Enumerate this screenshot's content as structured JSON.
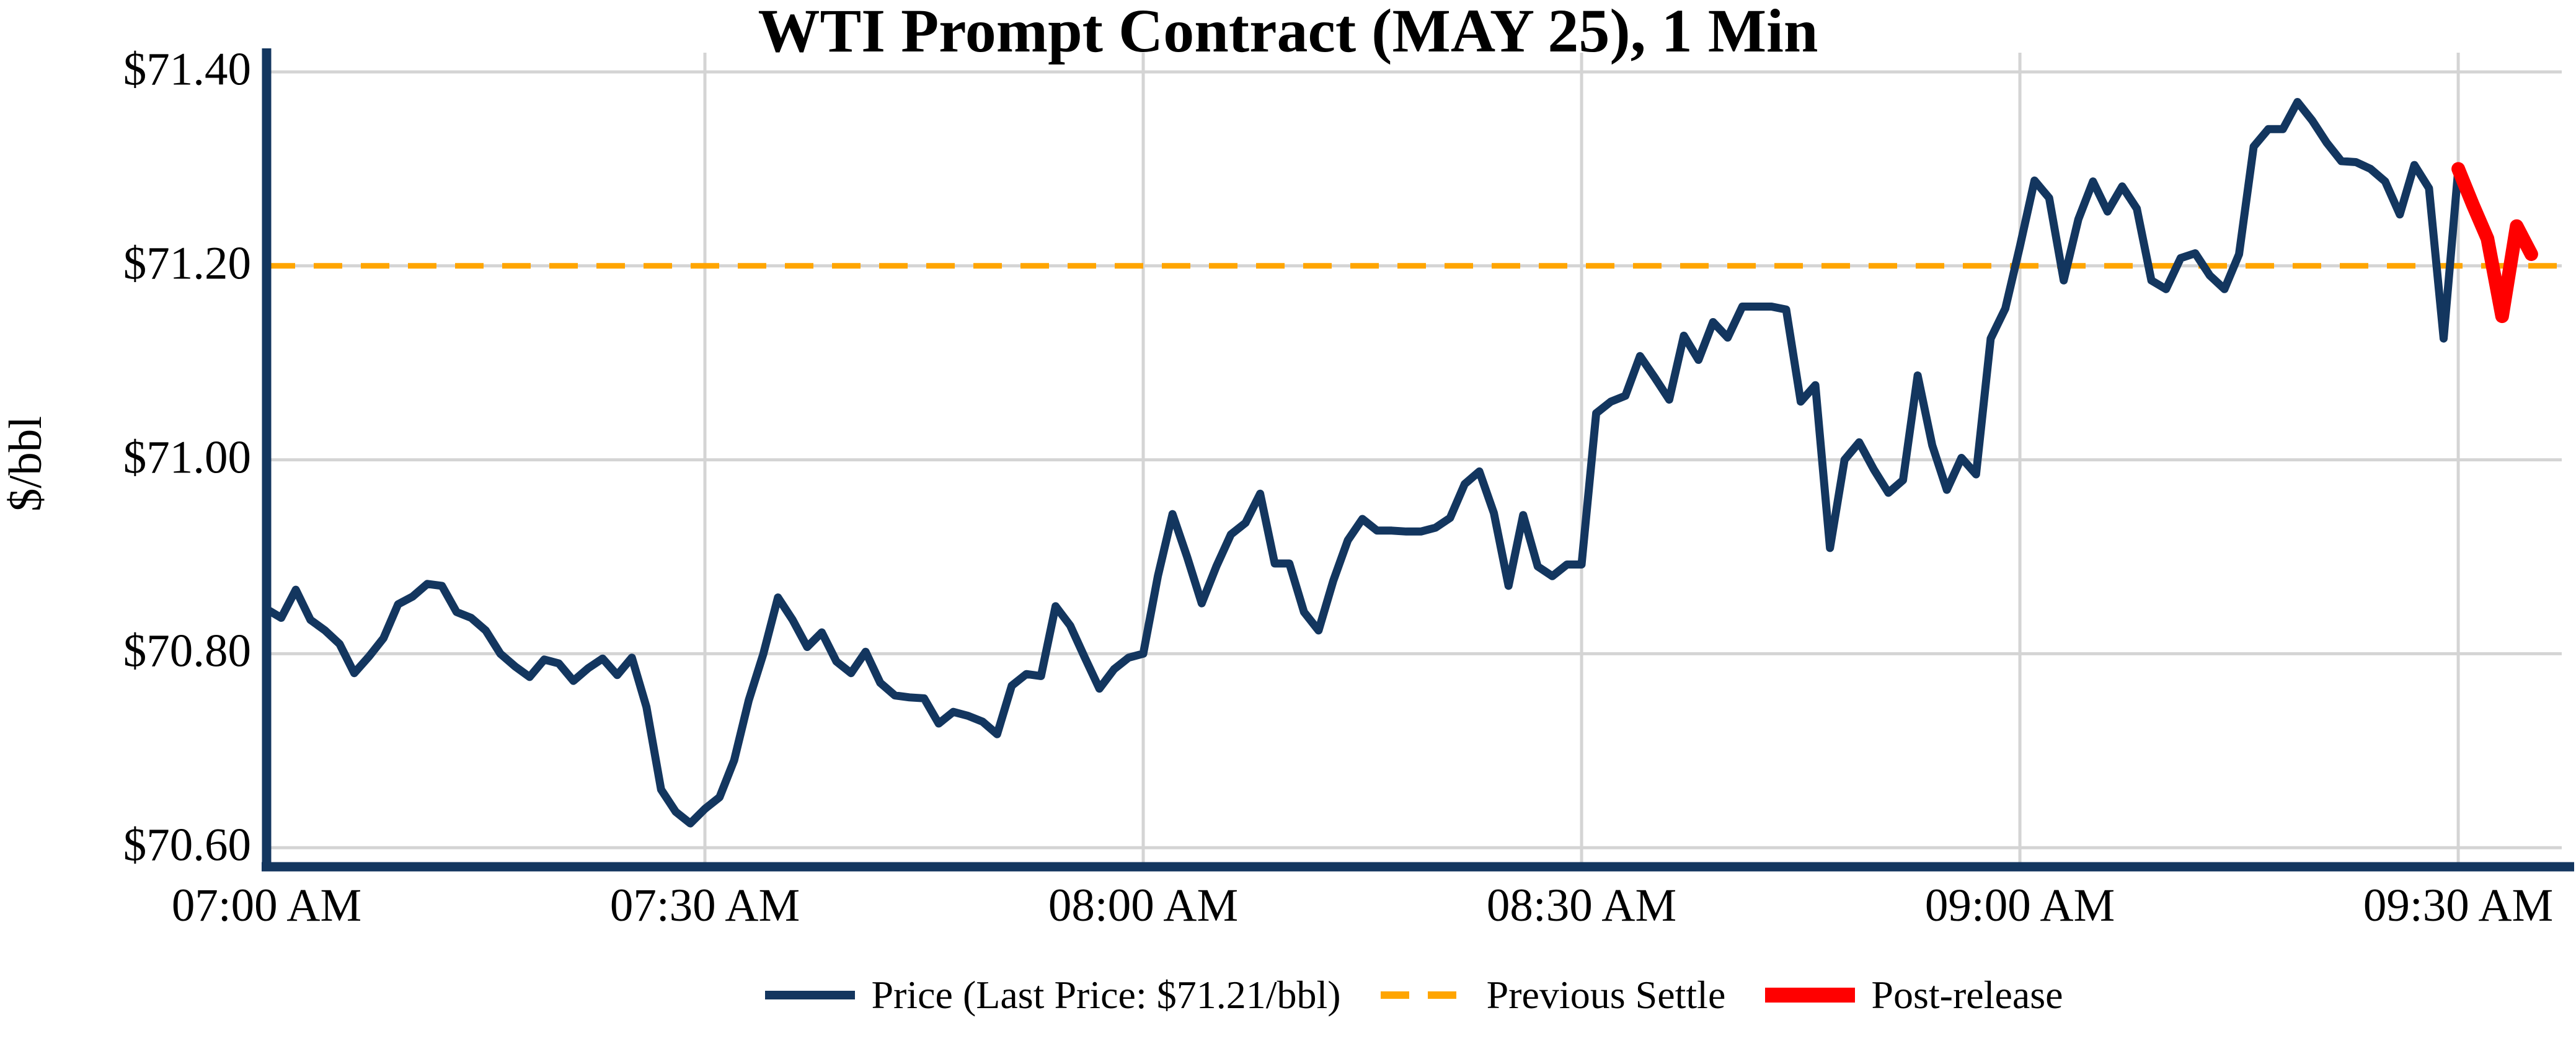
{
  "chart_data": {
    "type": "line",
    "title": "WTI Prompt Contract (MAY 25), 1 Min",
    "xlabel": "",
    "ylabel": "$/bbl",
    "ylim": [
      70.57,
      71.42
    ],
    "xlim_minutes": [
      0,
      157
    ],
    "grid": true,
    "legend_position": "bottom-center",
    "x_unit": "minutes since 07:00 AM, 1-minute bars",
    "previous_settle": 71.2,
    "last_price": 71.21,
    "yticks": [
      {
        "value": 71.4,
        "label": "$71.40"
      },
      {
        "value": 71.2,
        "label": "$71.20"
      },
      {
        "value": 71.0,
        "label": "$71.00"
      },
      {
        "value": 70.8,
        "label": "$70.80"
      },
      {
        "value": 70.6,
        "label": "$70.60"
      }
    ],
    "xticks": [
      {
        "minute": 0,
        "label": "07:00 AM"
      },
      {
        "minute": 30,
        "label": "07:30 AM"
      },
      {
        "minute": 60,
        "label": "08:00 AM"
      },
      {
        "minute": 90,
        "label": "08:30 AM"
      },
      {
        "minute": 120,
        "label": "09:00 AM"
      },
      {
        "minute": 150,
        "label": "09:30 AM"
      }
    ],
    "series": [
      {
        "name": "Price (Last Price: $71.21/bbl)",
        "color": "#13365F",
        "style": "solid",
        "width": 13,
        "start_minute": 0,
        "interval_minutes": 1,
        "values": [
          70.846,
          70.837,
          70.866,
          70.835,
          70.824,
          70.81,
          70.78,
          70.797,
          70.816,
          70.851,
          70.859,
          70.872,
          70.87,
          70.843,
          70.837,
          70.824,
          70.8,
          70.787,
          70.776,
          70.794,
          70.79,
          70.772,
          70.785,
          70.795,
          70.778,
          70.796,
          70.745,
          70.66,
          70.637,
          70.625,
          70.64,
          70.652,
          70.69,
          70.752,
          70.8,
          70.858,
          70.835,
          70.807,
          70.822,
          70.792,
          70.78,
          70.802,
          70.77,
          70.757,
          70.755,
          70.754,
          70.728,
          70.74,
          70.736,
          70.73,
          70.717,
          70.767,
          70.779,
          70.777,
          70.849,
          70.829,
          70.796,
          70.764,
          70.784,
          70.796,
          70.8,
          70.88,
          70.944,
          70.9,
          70.852,
          70.89,
          70.923,
          70.935,
          70.965,
          70.893,
          70.893,
          70.843,
          70.824,
          70.875,
          70.917,
          70.939,
          70.927,
          70.927,
          70.926,
          70.926,
          70.93,
          70.94,
          70.975,
          70.988,
          70.945,
          70.87,
          70.943,
          70.89,
          70.88,
          70.892,
          70.892,
          71.048,
          71.06,
          71.066,
          71.107,
          71.085,
          71.062,
          71.128,
          71.103,
          71.142,
          71.126,
          71.158,
          71.158,
          71.158,
          71.155,
          71.06,
          71.077,
          70.909,
          71.0,
          71.018,
          70.99,
          70.966,
          70.979,
          71.087,
          71.015,
          70.969,
          71.002,
          70.985,
          71.125,
          71.156,
          71.22,
          71.288,
          71.27,
          71.185,
          71.248,
          71.287,
          71.256,
          71.282,
          71.259,
          71.185,
          71.176,
          71.208,
          71.213,
          71.19,
          71.176,
          71.212,
          71.323,
          71.341,
          71.341,
          71.369,
          71.35,
          71.327,
          71.308,
          71.307,
          71.3,
          71.287,
          71.253,
          71.304,
          71.28,
          71.125,
          71.3
        ]
      },
      {
        "name": "Previous Settle",
        "color": "#FFA500",
        "style": "dashed",
        "width": 9,
        "value": 71.2
      },
      {
        "name": "Post-release",
        "color": "#FF0000",
        "style": "solid",
        "width": 22,
        "start_minute": 150,
        "interval_minutes": 1,
        "values": [
          71.3,
          71.263,
          71.228,
          71.148,
          71.241,
          71.212
        ]
      }
    ]
  },
  "legend": [
    {
      "label": "Price (Last Price: $71.21/bbl)",
      "swatch": "line",
      "color": "#13365F"
    },
    {
      "label": "Previous Settle",
      "swatch": "dash",
      "color": "#FFA500"
    },
    {
      "label": "Post-release",
      "swatch": "thick",
      "color": "#FF0000"
    }
  ],
  "colors": {
    "price_line": "#13365F",
    "previous_settle": "#FFA500",
    "post_release": "#FF0000",
    "gridline": "#D4D4D4",
    "axis_spine": "#13365F",
    "background": "#FFFFFF",
    "text": "#000000"
  }
}
